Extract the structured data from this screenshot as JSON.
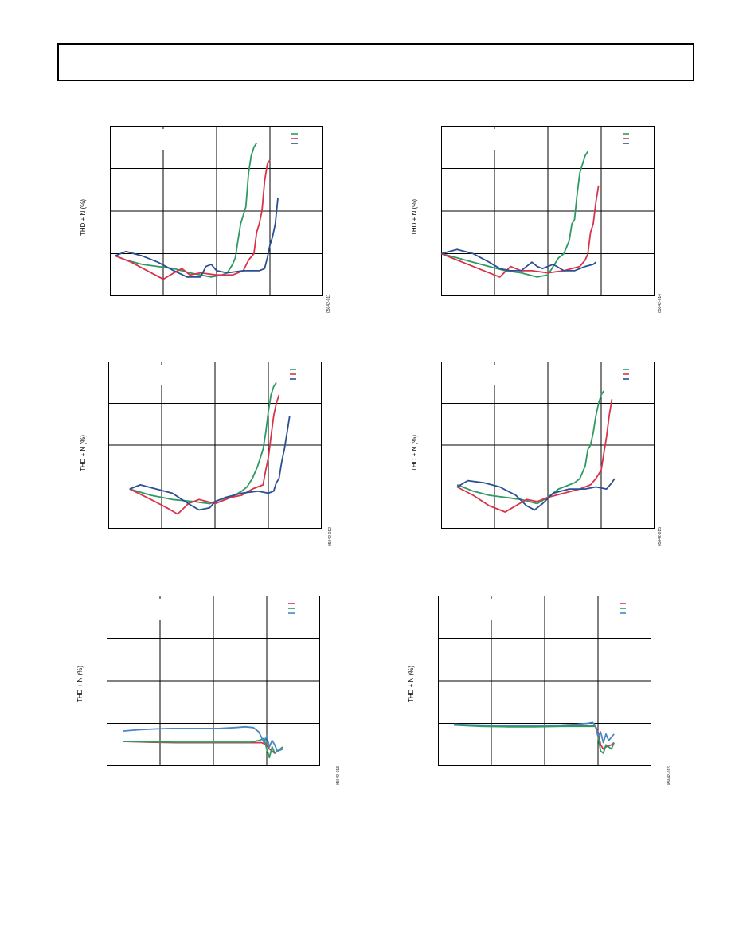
{
  "header": {
    "title": ""
  },
  "colors": {
    "green": "#2e9a63",
    "red": "#d9334a",
    "blue": "#2b4f93",
    "lightblue": "#4a86c2"
  },
  "panels": [
    {
      "id": "p1",
      "ylabel": "THD + N (%)",
      "fignum": "05042-011",
      "chart_data": {
        "type": "line",
        "xlim": [
          0,
          4
        ],
        "ylim": [
          0,
          4
        ],
        "legend": "top-right",
        "series": [
          {
            "color": "green",
            "x": [
              0.1,
              0.3,
              0.6,
              0.9,
              1.2,
              1.5,
              1.7,
              1.9,
              2.1,
              2.2,
              2.3,
              2.35,
              2.4,
              2.45,
              2.5,
              2.55,
              2.6,
              2.65,
              2.7,
              2.75
            ],
            "y": [
              0.95,
              0.85,
              0.75,
              0.7,
              0.65,
              0.55,
              0.5,
              0.45,
              0.5,
              0.55,
              0.75,
              0.9,
              1.3,
              1.7,
              1.9,
              2.1,
              2.9,
              3.3,
              3.5,
              3.6
            ]
          },
          {
            "color": "red",
            "x": [
              0.1,
              0.4,
              0.7,
              1.0,
              1.2,
              1.35,
              1.5,
              1.7,
              2.0,
              2.3,
              2.5,
              2.6,
              2.7,
              2.75,
              2.8,
              2.85,
              2.9,
              2.95,
              3.0
            ],
            "y": [
              0.95,
              0.8,
              0.6,
              0.4,
              0.55,
              0.65,
              0.5,
              0.55,
              0.5,
              0.5,
              0.6,
              0.85,
              1.0,
              1.5,
              1.7,
              2.0,
              2.7,
              3.1,
              3.2
            ]
          },
          {
            "color": "blue",
            "x": [
              0.1,
              0.3,
              0.6,
              0.9,
              1.2,
              1.45,
              1.7,
              1.8,
              1.9,
              2.0,
              2.2,
              2.5,
              2.8,
              2.9,
              2.95,
              3.0,
              3.05,
              3.1,
              3.15
            ],
            "y": [
              0.95,
              1.05,
              0.95,
              0.8,
              0.6,
              0.45,
              0.45,
              0.7,
              0.75,
              0.6,
              0.55,
              0.6,
              0.6,
              0.65,
              0.9,
              1.2,
              1.4,
              1.7,
              2.3
            ]
          }
        ]
      }
    },
    {
      "id": "p2",
      "ylabel": "THD + N (%)",
      "fignum": "05042-014",
      "chart_data": {
        "type": "line",
        "xlim": [
          0,
          4
        ],
        "ylim": [
          0,
          4
        ],
        "legend": "top-right",
        "series": [
          {
            "color": "green",
            "x": [
              0.0,
              0.3,
              0.6,
              0.9,
              1.2,
              1.5,
              1.8,
              2.0,
              2.1,
              2.2,
              2.3,
              2.4,
              2.45,
              2.5,
              2.55,
              2.6,
              2.65,
              2.7,
              2.75
            ],
            "y": [
              1.0,
              0.9,
              0.8,
              0.7,
              0.6,
              0.55,
              0.45,
              0.5,
              0.7,
              0.9,
              1.0,
              1.3,
              1.7,
              1.8,
              2.4,
              2.9,
              3.1,
              3.3,
              3.4
            ]
          },
          {
            "color": "red",
            "x": [
              0.0,
              0.4,
              0.8,
              1.1,
              1.3,
              1.5,
              1.7,
              2.0,
              2.3,
              2.6,
              2.7,
              2.75,
              2.8,
              2.85,
              2.9,
              2.95
            ],
            "y": [
              1.0,
              0.8,
              0.6,
              0.45,
              0.7,
              0.6,
              0.6,
              0.55,
              0.6,
              0.7,
              0.85,
              1.0,
              1.5,
              1.7,
              2.2,
              2.6
            ]
          },
          {
            "color": "blue",
            "x": [
              0.0,
              0.3,
              0.6,
              0.9,
              1.1,
              1.3,
              1.5,
              1.7,
              1.8,
              1.9,
              2.1,
              2.3,
              2.5,
              2.7,
              2.85,
              2.9
            ],
            "y": [
              1.0,
              1.1,
              1.0,
              0.8,
              0.65,
              0.6,
              0.6,
              0.8,
              0.7,
              0.65,
              0.75,
              0.6,
              0.6,
              0.7,
              0.75,
              0.8
            ]
          }
        ]
      }
    },
    {
      "id": "p3",
      "ylabel": "THD + N (%)",
      "fignum": "05042-012",
      "chart_data": {
        "type": "line",
        "xlim": [
          0,
          4
        ],
        "ylim": [
          0,
          4
        ],
        "legend": "top-right",
        "series": [
          {
            "color": "green",
            "x": [
              0.4,
              0.8,
              1.2,
              1.6,
              1.9,
              2.1,
              2.3,
              2.5,
              2.6,
              2.7,
              2.8,
              2.85,
              2.9,
              2.95,
              3.0,
              3.05,
              3.1,
              3.15
            ],
            "y": [
              0.95,
              0.8,
              0.7,
              0.65,
              0.6,
              0.7,
              0.75,
              0.9,
              1.0,
              1.2,
              1.5,
              1.7,
              1.9,
              2.3,
              2.8,
              3.2,
              3.4,
              3.5
            ]
          },
          {
            "color": "red",
            "x": [
              0.4,
              0.8,
              1.1,
              1.3,
              1.5,
              1.7,
              2.0,
              2.3,
              2.5,
              2.7,
              2.8,
              2.9,
              2.95,
              3.0,
              3.05,
              3.1,
              3.15,
              3.2
            ],
            "y": [
              0.95,
              0.7,
              0.5,
              0.35,
              0.6,
              0.7,
              0.6,
              0.75,
              0.8,
              0.95,
              1.0,
              1.05,
              1.4,
              1.7,
              2.2,
              2.7,
              3.0,
              3.2
            ]
          },
          {
            "color": "blue",
            "x": [
              0.4,
              0.6,
              0.9,
              1.2,
              1.5,
              1.7,
              1.9,
              2.0,
              2.2,
              2.5,
              2.8,
              3.0,
              3.1,
              3.15,
              3.2,
              3.25,
              3.3,
              3.35,
              3.4
            ],
            "y": [
              0.95,
              1.05,
              0.95,
              0.85,
              0.6,
              0.45,
              0.5,
              0.65,
              0.75,
              0.85,
              0.9,
              0.85,
              0.9,
              1.1,
              1.2,
              1.6,
              1.9,
              2.3,
              2.7
            ]
          }
        ]
      }
    },
    {
      "id": "p4",
      "ylabel": "THD + N (%)",
      "fignum": "05042-015",
      "chart_data": {
        "type": "line",
        "xlim": [
          0,
          4
        ],
        "ylim": [
          0,
          4
        ],
        "legend": "top-right",
        "series": [
          {
            "color": "green",
            "x": [
              0.3,
              0.6,
              0.9,
              1.2,
              1.5,
              1.8,
              2.0,
              2.2,
              2.3,
              2.5,
              2.6,
              2.7,
              2.75,
              2.8,
              2.85,
              2.9,
              2.95,
              3.0,
              3.05
            ],
            "y": [
              1.05,
              0.9,
              0.8,
              0.75,
              0.7,
              0.6,
              0.75,
              0.95,
              1.0,
              1.1,
              1.2,
              1.5,
              1.9,
              2.0,
              2.3,
              2.7,
              3.0,
              3.2,
              3.3
            ]
          },
          {
            "color": "red",
            "x": [
              0.3,
              0.6,
              0.9,
              1.2,
              1.4,
              1.6,
              1.8,
              2.0,
              2.3,
              2.6,
              2.8,
              2.9,
              3.0,
              3.05,
              3.1,
              3.15,
              3.2
            ],
            "y": [
              1.0,
              0.8,
              0.55,
              0.4,
              0.55,
              0.7,
              0.65,
              0.75,
              0.85,
              0.95,
              1.05,
              1.2,
              1.4,
              1.8,
              2.2,
              2.7,
              3.1
            ]
          },
          {
            "color": "blue",
            "x": [
              0.3,
              0.5,
              0.8,
              1.1,
              1.4,
              1.6,
              1.75,
              1.9,
              2.1,
              2.4,
              2.7,
              2.9,
              3.1,
              3.2,
              3.25
            ],
            "y": [
              1.0,
              1.15,
              1.1,
              1.0,
              0.8,
              0.55,
              0.45,
              0.6,
              0.85,
              0.95,
              0.95,
              1.0,
              0.95,
              1.1,
              1.2
            ]
          }
        ]
      }
    },
    {
      "id": "p5",
      "ylabel": "THD + N (%)",
      "fignum": "05042-013",
      "chart_data": {
        "type": "line",
        "xlim": [
          0,
          4
        ],
        "ylim": [
          0,
          4
        ],
        "legend": "top-right",
        "series": [
          {
            "color": "red",
            "x": [
              0.3,
              0.8,
              1.3,
              1.8,
              2.3,
              2.7,
              2.9,
              3.0,
              3.05,
              3.1,
              3.15,
              3.2,
              3.3
            ],
            "y": [
              0.58,
              0.56,
              0.55,
              0.55,
              0.55,
              0.55,
              0.55,
              0.5,
              0.4,
              0.35,
              0.3,
              0.35,
              0.4
            ]
          },
          {
            "color": "green",
            "x": [
              0.3,
              0.8,
              1.3,
              1.8,
              2.3,
              2.7,
              2.85,
              2.95,
              3.0,
              3.05,
              3.1,
              3.15,
              3.2,
              3.3
            ],
            "y": [
              0.58,
              0.57,
              0.56,
              0.56,
              0.56,
              0.56,
              0.6,
              0.65,
              0.4,
              0.2,
              0.45,
              0.3,
              0.35,
              0.45
            ]
          },
          {
            "color": "lightblue",
            "x": [
              0.3,
              0.6,
              0.9,
              1.2,
              1.5,
              1.8,
              2.1,
              2.4,
              2.6,
              2.75,
              2.85,
              2.95,
              3.0,
              3.05,
              3.1,
              3.15,
              3.2,
              3.3
            ],
            "y": [
              0.82,
              0.85,
              0.87,
              0.88,
              0.88,
              0.88,
              0.88,
              0.9,
              0.92,
              0.9,
              0.8,
              0.55,
              0.7,
              0.45,
              0.6,
              0.5,
              0.35,
              0.4
            ]
          }
        ]
      }
    },
    {
      "id": "p6",
      "ylabel": "THD + N (%)",
      "fignum": "05042-016",
      "chart_data": {
        "type": "line",
        "xlim": [
          0,
          4
        ],
        "ylim": [
          0,
          4
        ],
        "legend": "top-right",
        "series": [
          {
            "color": "red",
            "x": [
              0.3,
              0.8,
              1.3,
              1.8,
              2.3,
              2.7,
              2.95,
              3.0,
              3.05,
              3.1,
              3.15,
              3.25,
              3.3
            ],
            "y": [
              0.98,
              0.95,
              0.94,
              0.94,
              0.94,
              0.94,
              0.94,
              0.8,
              0.5,
              0.4,
              0.45,
              0.5,
              0.55
            ]
          },
          {
            "color": "green",
            "x": [
              0.3,
              0.8,
              1.3,
              1.8,
              2.3,
              2.7,
              2.95,
              3.0,
              3.05,
              3.1,
              3.15,
              3.25,
              3.3
            ],
            "y": [
              0.96,
              0.93,
              0.92,
              0.92,
              0.93,
              0.93,
              0.93,
              0.7,
              0.35,
              0.3,
              0.5,
              0.4,
              0.55
            ]
          },
          {
            "color": "lightblue",
            "x": [
              0.3,
              0.8,
              1.3,
              1.8,
              2.3,
              2.6,
              2.8,
              2.9,
              2.95,
              3.0,
              3.05,
              3.1,
              3.15,
              3.2,
              3.3
            ],
            "y": [
              0.98,
              0.96,
              0.95,
              0.95,
              0.96,
              0.98,
              1.0,
              1.02,
              0.95,
              0.7,
              0.8,
              0.55,
              0.75,
              0.6,
              0.75
            ]
          }
        ]
      }
    }
  ]
}
